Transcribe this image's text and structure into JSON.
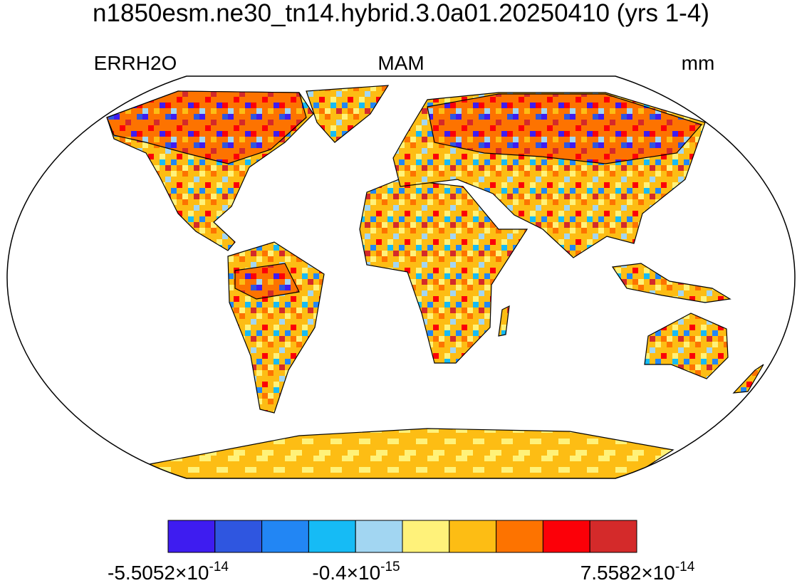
{
  "title": "n1850esm.ne30_tn14.hybrid.3.0a01.20250410 (yrs 1-4)",
  "left_label": "ERRH2O",
  "center_label": "MAM",
  "right_label": "mm",
  "colorbar": {
    "colors": [
      "#3e1cf0",
      "#2f56e0",
      "#2286f4",
      "#16bbf5",
      "#a2d6f2",
      "#fff27a",
      "#fdbd14",
      "#fd7300",
      "#fc0008",
      "#d42a2a"
    ],
    "labels": [
      {
        "mantissa": "-5.5052×10",
        "exponent": "-14"
      },
      {
        "mantissa": "-0.4×10",
        "exponent": "-15"
      },
      {
        "mantissa": "7.5582×10",
        "exponent": "-14"
      }
    ]
  }
}
